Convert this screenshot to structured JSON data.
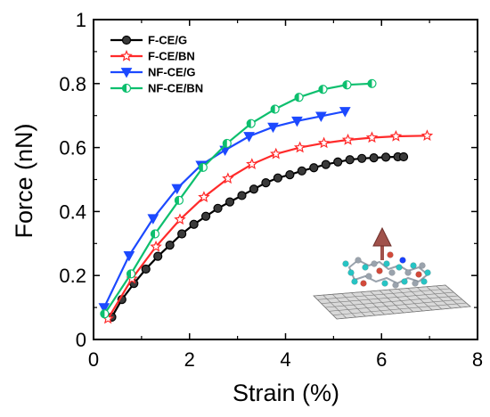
{
  "chart_data": {
    "type": "line",
    "xlabel": "Strain (%)",
    "ylabel": "Force (nN)",
    "xlim": [
      0,
      8
    ],
    "ylim": [
      0,
      1
    ],
    "xticks": [
      0,
      2,
      4,
      6,
      8
    ],
    "yticks": [
      0,
      0.2,
      0.4,
      0.6,
      0.8,
      1
    ],
    "xtick_labels": [
      "0",
      "2",
      "4",
      "6",
      "8"
    ],
    "ytick_labels": [
      "0",
      "0.2",
      "0.4",
      "0.6",
      "0.8",
      "1"
    ],
    "grid": false,
    "legend_position": "top-left",
    "inset": "molecule-on-graphene-sheet",
    "inset_arrow_color": "#a0524b",
    "series": [
      {
        "name": "F-CE/G",
        "color": "#000000",
        "marker": "circle",
        "x": [
          0.38,
          0.59,
          0.84,
          1.09,
          1.34,
          1.59,
          1.84,
          2.09,
          2.34,
          2.59,
          2.84,
          3.09,
          3.34,
          3.59,
          3.84,
          4.09,
          4.34,
          4.59,
          4.84,
          5.09,
          5.34,
          5.59,
          5.84,
          6.09,
          6.34,
          6.46
        ],
        "y": [
          0.07,
          0.125,
          0.175,
          0.22,
          0.26,
          0.295,
          0.33,
          0.36,
          0.385,
          0.41,
          0.43,
          0.45,
          0.47,
          0.49,
          0.505,
          0.515,
          0.527,
          0.537,
          0.547,
          0.555,
          0.562,
          0.566,
          0.568,
          0.57,
          0.571,
          0.571
        ]
      },
      {
        "name": "F-CE/BN",
        "color": "#ff2a2a",
        "marker": "star",
        "x": [
          0.3,
          0.8,
          1.3,
          1.8,
          2.3,
          2.8,
          3.3,
          3.8,
          4.3,
          4.8,
          5.3,
          5.8,
          6.3,
          6.95
        ],
        "y": [
          0.065,
          0.19,
          0.29,
          0.375,
          0.445,
          0.503,
          0.548,
          0.58,
          0.6,
          0.614,
          0.624,
          0.631,
          0.635,
          0.637
        ]
      },
      {
        "name": "NF-CE/G",
        "color": "#1c49ff",
        "marker": "triangle-down",
        "x": [
          0.22,
          0.74,
          1.24,
          1.74,
          2.24,
          2.74,
          3.24,
          3.74,
          4.24,
          4.74,
          5.24
        ],
        "y": [
          0.1,
          0.262,
          0.378,
          0.472,
          0.545,
          0.592,
          0.635,
          0.664,
          0.683,
          0.698,
          0.713
        ]
      },
      {
        "name": "NF-CE/BN",
        "color": "#0dbf6e",
        "marker": "half-circle",
        "x": [
          0.23,
          0.78,
          1.28,
          1.78,
          2.28,
          2.78,
          3.28,
          3.78,
          4.28,
          4.78,
          5.28,
          5.8
        ],
        "y": [
          0.08,
          0.205,
          0.33,
          0.435,
          0.538,
          0.613,
          0.675,
          0.72,
          0.757,
          0.782,
          0.796,
          0.8
        ]
      }
    ]
  }
}
